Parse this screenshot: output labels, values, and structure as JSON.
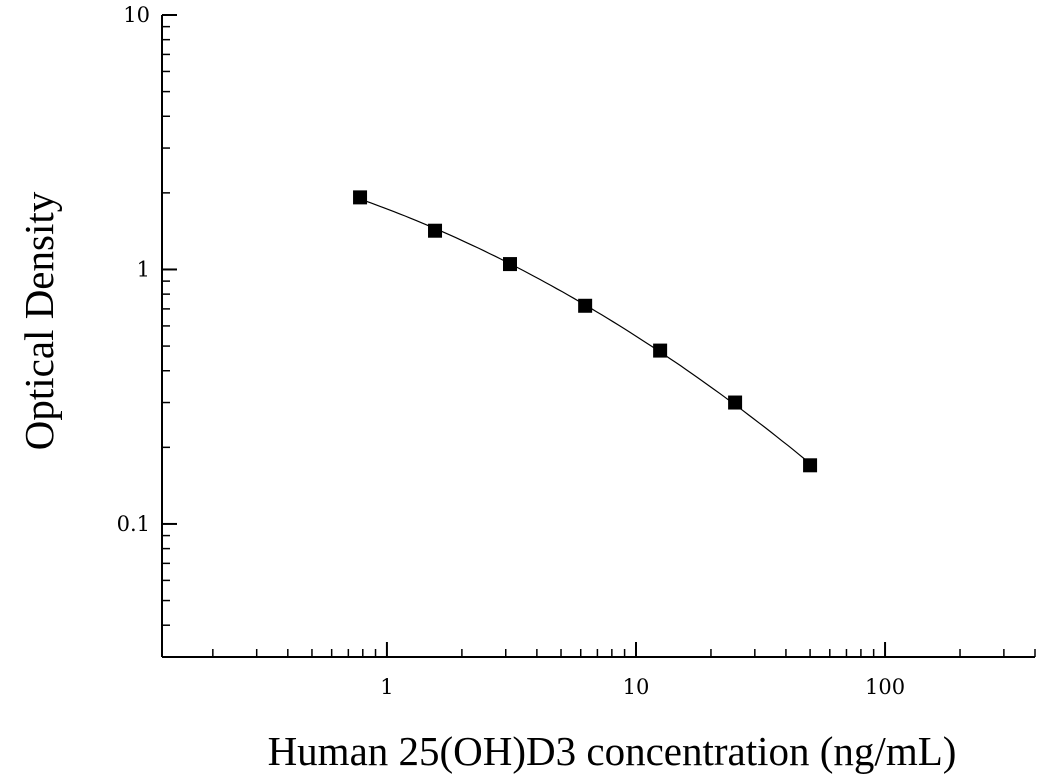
{
  "chart_data": {
    "type": "scatter",
    "xlabel": "Human 25(OH)D3 concentration (ng/mL)",
    "ylabel": "Optical Density",
    "x_scale": "log",
    "y_scale": "log",
    "xlim": [
      0.125,
      400
    ],
    "ylim": [
      0.03,
      10
    ],
    "x_ticks": [
      {
        "value": 1,
        "label": "1"
      },
      {
        "value": 10,
        "label": "10"
      },
      {
        "value": 100,
        "label": "100"
      }
    ],
    "y_ticks": [
      {
        "value": 0.1,
        "label": "0.1"
      },
      {
        "value": 1,
        "label": "1"
      },
      {
        "value": 10,
        "label": "10"
      }
    ],
    "grid": false,
    "marker": "square",
    "fit_curve": true,
    "color": "#000000",
    "series": [
      {
        "x": [
          0.78,
          1.56,
          3.12,
          6.25,
          12.5,
          25,
          50
        ],
        "y": [
          1.92,
          1.42,
          1.05,
          0.72,
          0.48,
          0.3,
          0.17
        ]
      }
    ]
  }
}
